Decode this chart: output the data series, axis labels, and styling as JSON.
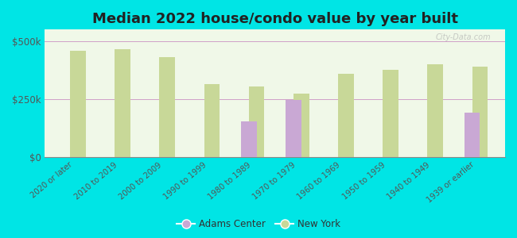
{
  "title": "Median 2022 house/condo value by year built",
  "categories": [
    "2020 or later",
    "2010 to 2019",
    "2000 to 2009",
    "1990 to 1999",
    "1980 to 1989",
    "1970 to 1979",
    "1960 to 1969",
    "1950 to 1959",
    "1940 to 1949",
    "1939 or earlier"
  ],
  "adams_center": [
    null,
    null,
    null,
    null,
    155000,
    245000,
    null,
    null,
    null,
    190000
  ],
  "new_york": [
    460000,
    465000,
    430000,
    315000,
    305000,
    275000,
    360000,
    375000,
    400000,
    390000
  ],
  "adams_color": "#c9a8d4",
  "new_york_color": "#c8d898",
  "background_color": "#00e5e5",
  "plot_bg_top": "#f0f8e8",
  "plot_bg_bottom": "#d8eecc",
  "ylim": [
    0,
    550000
  ],
  "yticks": [
    0,
    250000,
    500000
  ],
  "ytick_labels": [
    "$0",
    "$250k",
    "$500k"
  ],
  "legend_labels": [
    "Adams Center",
    "New York"
  ],
  "title_fontsize": 13,
  "watermark": "City-Data.com"
}
